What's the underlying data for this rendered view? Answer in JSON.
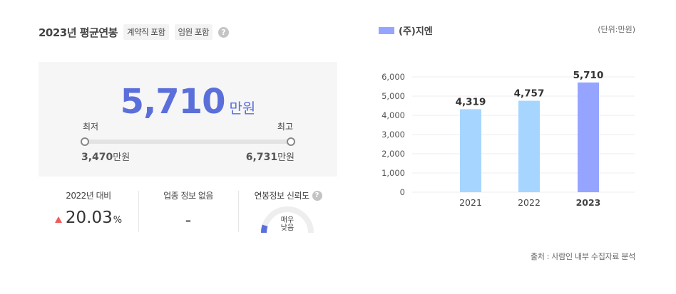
{
  "header": {
    "title": "2023년 평균연봉",
    "tags": [
      "계약직 포함",
      "임원 포함"
    ],
    "help": "?"
  },
  "salary": {
    "value": "5,710",
    "unit": "만원",
    "min_label": "최저",
    "max_label": "최고",
    "min_value": "3,470",
    "max_value": "6,731",
    "range_unit": "만원"
  },
  "stats": {
    "growth_label": "2022년 대비",
    "growth_value": "20.03",
    "growth_unit": "%",
    "industry_label": "업종 정보 없음",
    "industry_value": "-",
    "reliability_label": "연봉정보 신뢰도",
    "reliability_help": "?",
    "reliability_value": "매우 낮음",
    "reliability_level": 0.1
  },
  "chart_meta": {
    "legend": "(주)지엔",
    "unit_note": "(단위:만원)",
    "source": "출처 : 사람인 내부 수집자료 분석"
  },
  "colors": {
    "accent": "#5b6fdb",
    "bar_past": "#a6d6ff",
    "bar_current": "#95a5ff",
    "up_arrow": "#ef5a5a"
  },
  "chart_data": {
    "type": "bar",
    "categories": [
      "2021",
      "2022",
      "2023"
    ],
    "values": [
      4319,
      4757,
      5710
    ],
    "value_labels": [
      "4,319",
      "4,757",
      "5,710"
    ],
    "yticks": [
      "6,000",
      "5,000",
      "4,000",
      "3,000",
      "2,000",
      "1,000",
      "0"
    ],
    "ylim": [
      0,
      6000
    ],
    "grid": true,
    "legend_position": "top-left"
  }
}
